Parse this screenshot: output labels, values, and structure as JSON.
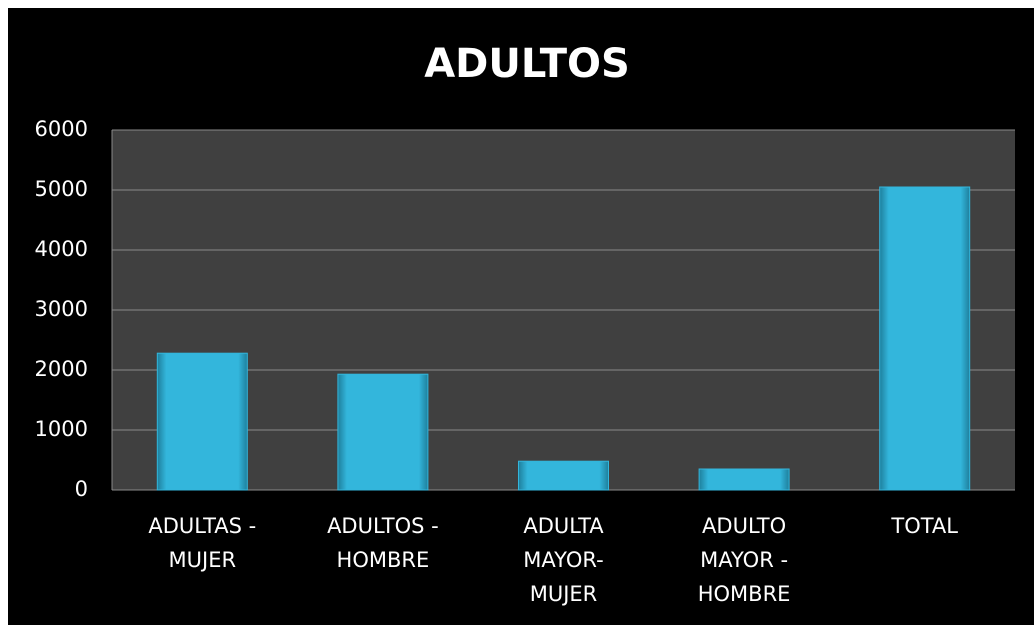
{
  "chart_data": {
    "type": "bar",
    "title": "ADULTOS",
    "categories": [
      [
        "ADULTAS -",
        "MUJER"
      ],
      [
        "ADULTOS -",
        "HOMBRE"
      ],
      [
        "ADULTA",
        "MAYOR-",
        "MUJER"
      ],
      [
        "ADULTO",
        "MAYOR -",
        "HOMBRE"
      ],
      [
        "TOTAL"
      ]
    ],
    "values": [
      2280,
      1930,
      480,
      350,
      5050
    ],
    "color": "#33b6dc",
    "ylim": [
      0,
      6000
    ],
    "yticks": [
      0,
      1000,
      2000,
      3000,
      4000,
      5000,
      6000
    ],
    "grid": true
  }
}
